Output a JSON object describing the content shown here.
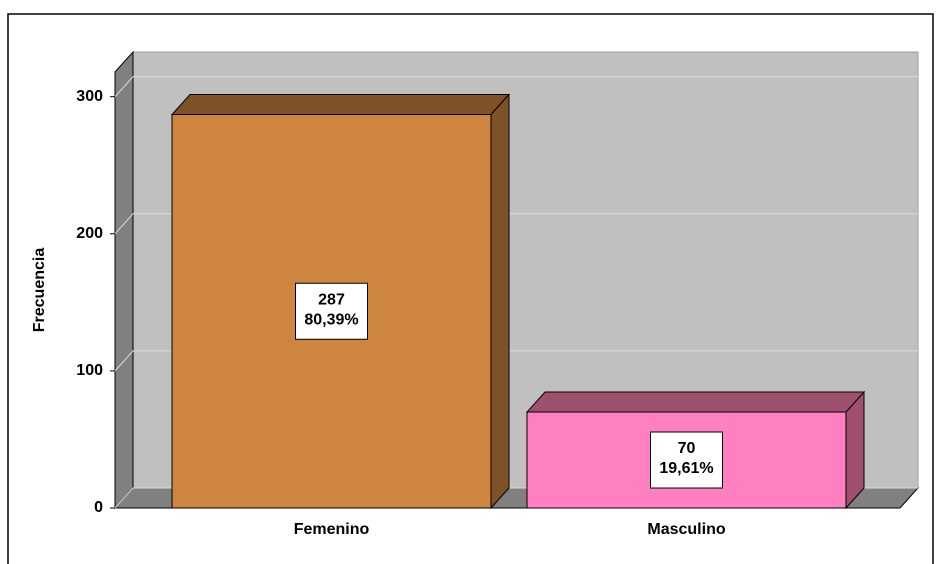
{
  "chart_data": {
    "type": "bar3d",
    "ylabel": "Frecuencia",
    "categories": [
      "Femenino",
      "Masculino"
    ],
    "values": [
      287,
      70
    ],
    "percent_labels": [
      "80,39%",
      "19,61%"
    ],
    "colors": [
      "#cd853f",
      "#ff80c0"
    ],
    "side_colors": [
      "#7f5128",
      "#a0506f"
    ],
    "ylim": [
      0,
      318
    ],
    "yticks": [
      0,
      100,
      200,
      300
    ],
    "grid": true
  }
}
